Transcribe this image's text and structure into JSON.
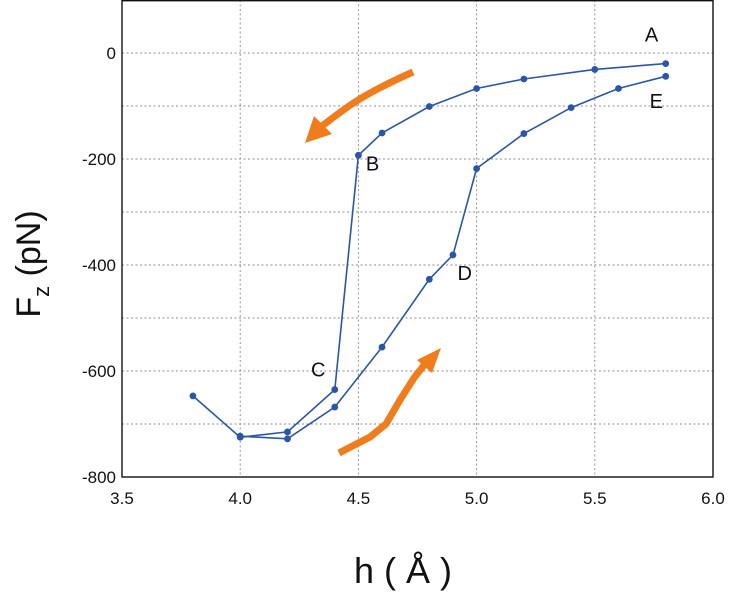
{
  "chart_data": {
    "type": "line",
    "xlabel": "h ( Å )",
    "ylabel_main": "F",
    "ylabel_sub": "z",
    "ylabel_unit": " (pN)",
    "xlim": [
      3.5,
      6.0
    ],
    "ylim": [
      -800,
      100
    ],
    "xticks": [
      "3.5",
      "4.0",
      "4.5",
      "5.0",
      "5.5",
      "6.0"
    ],
    "yticks": [
      "0",
      "-200",
      "-400",
      "-600",
      "-800"
    ],
    "grid": true,
    "series": [
      {
        "x": [
          5.8,
          5.5,
          5.2,
          5.0,
          4.8,
          4.6,
          4.5,
          4.4,
          4.2,
          4.0,
          3.8
        ],
        "y": [
          -20,
          -31,
          -49,
          -67,
          -101,
          -151,
          -193,
          -635,
          -715,
          -725,
          -647
        ]
      },
      {
        "x": [
          4.0,
          4.2,
          4.4,
          4.6,
          4.8,
          4.9,
          5.0,
          5.2,
          5.4,
          5.6,
          5.8
        ],
        "y": [
          -723,
          -728,
          -668,
          -555,
          -427,
          -381,
          -218,
          -152,
          -103,
          -67,
          -44
        ]
      }
    ],
    "annotations": [
      {
        "text": "A",
        "x": 5.74,
        "y": 22
      },
      {
        "text": "B",
        "x": 4.56,
        "y": -222
      },
      {
        "text": "C",
        "x": 4.33,
        "y": -610
      },
      {
        "text": "D",
        "x": 4.95,
        "y": -428
      },
      {
        "text": "E",
        "x": 5.76,
        "y": -104
      }
    ],
    "arrows": [
      {
        "direction": "toward-lower-left",
        "color": "#f07c1c"
      },
      {
        "direction": "toward-upper-right",
        "color": "#f07c1c"
      }
    ]
  }
}
